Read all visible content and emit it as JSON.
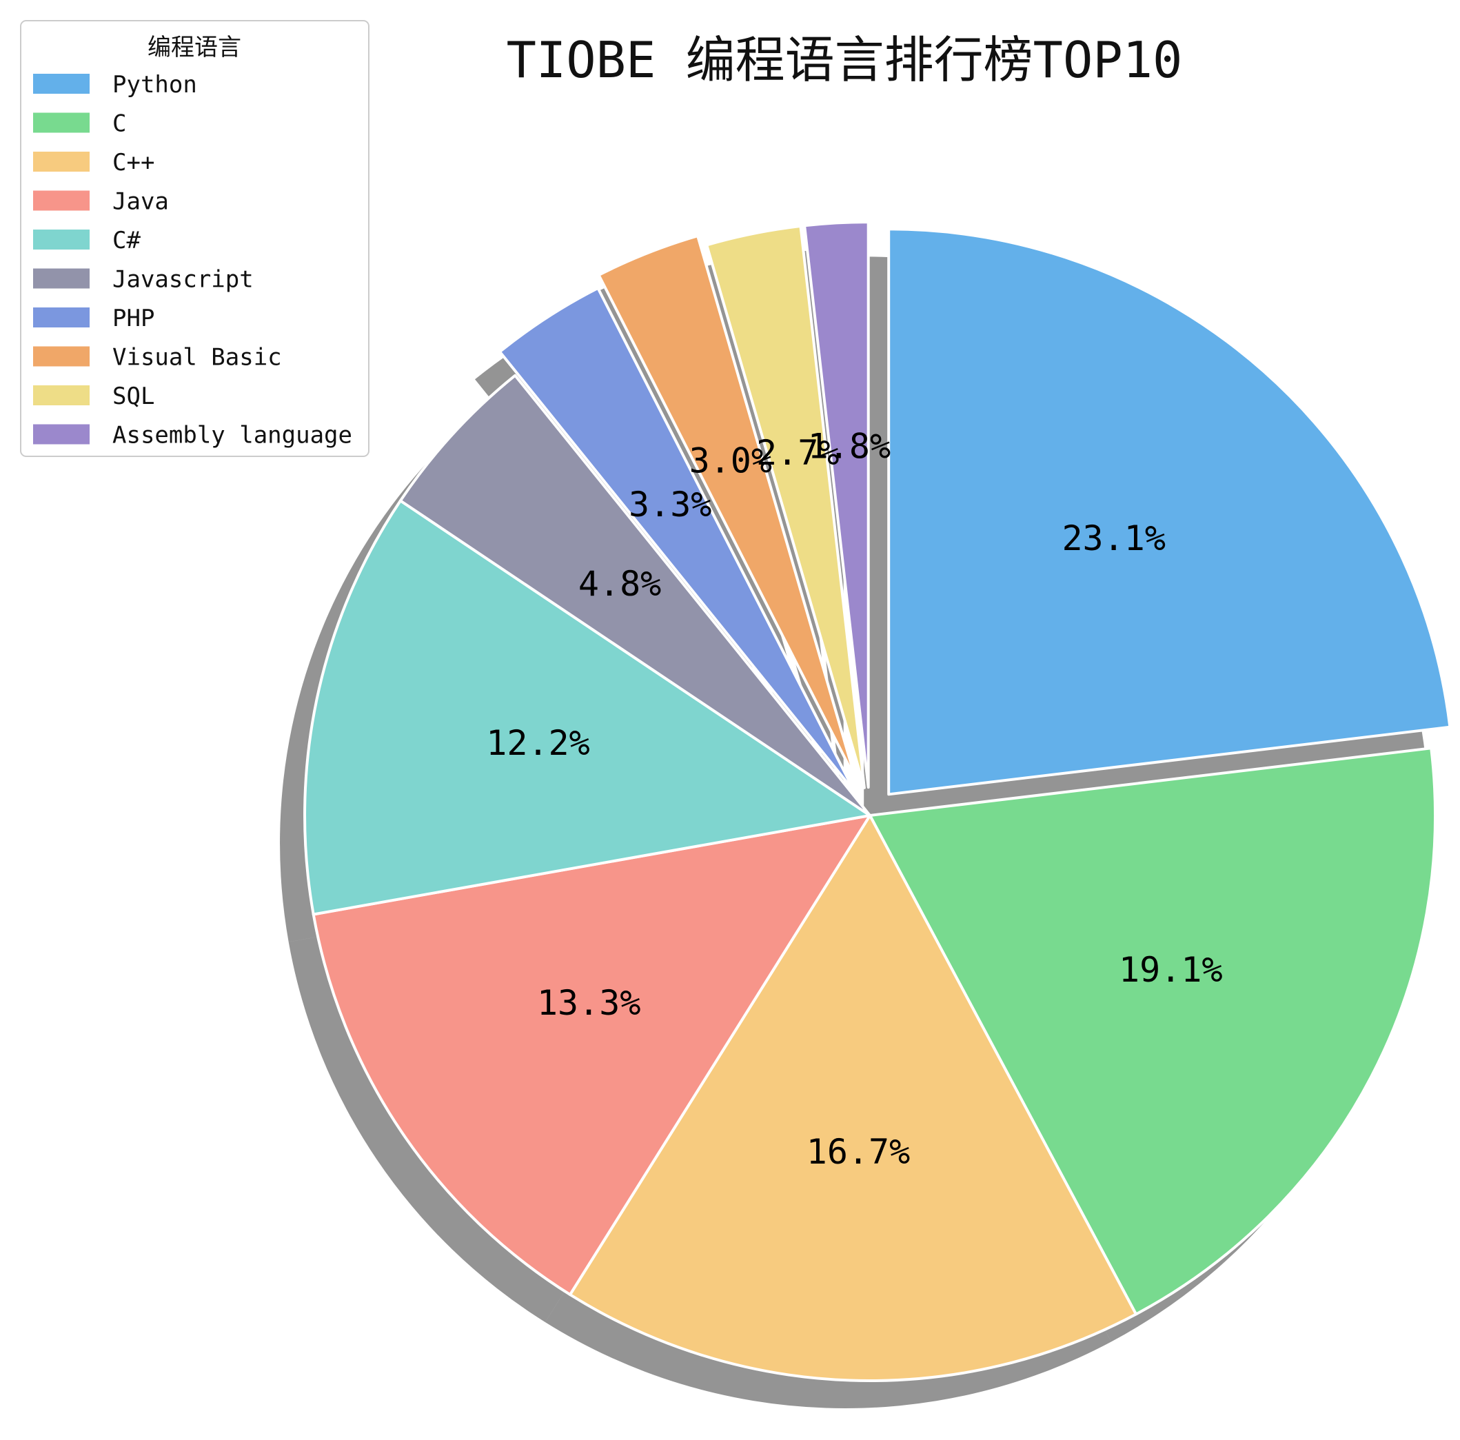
{
  "chart_data": {
    "type": "pie",
    "title": "TIOBE 编程语言排行榜TOP10",
    "legend_title": "编程语言",
    "legend_position": "top-left",
    "start_angle_deg": 90,
    "direction": "clockwise",
    "shadow": true,
    "slices": [
      {
        "name": "Python",
        "value": 23.1,
        "label": "23.1%",
        "color": "#63b0ea",
        "explode": 0.05
      },
      {
        "name": "C",
        "value": 19.1,
        "label": "19.1%",
        "color": "#78da8f",
        "explode": 0.0
      },
      {
        "name": "C++",
        "value": 16.7,
        "label": "16.7%",
        "color": "#f7cb7f",
        "explode": 0.0
      },
      {
        "name": "Java",
        "value": 13.3,
        "label": "13.3%",
        "color": "#f7958a",
        "explode": 0.0
      },
      {
        "name": "C#",
        "value": 12.2,
        "label": "12.2%",
        "color": "#7fd5cf",
        "explode": 0.0
      },
      {
        "name": "Javascript",
        "value": 4.8,
        "label": "4.8%",
        "color": "#9293aa",
        "explode": 0.0
      },
      {
        "name": "PHP",
        "value": 3.3,
        "label": "3.3%",
        "color": "#7b97df",
        "explode": 0.05
      },
      {
        "name": "Visual Basic",
        "value": 3.0,
        "label": "3.0%",
        "color": "#f0a768",
        "explode": 0.07
      },
      {
        "name": "SQL",
        "value": 2.7,
        "label": "2.7%",
        "color": "#eedd87",
        "explode": 0.05
      },
      {
        "name": "Assembly language",
        "value": 1.8,
        "label": "1.8%",
        "color": "#9b88cc",
        "explode": 0.05
      }
    ]
  }
}
